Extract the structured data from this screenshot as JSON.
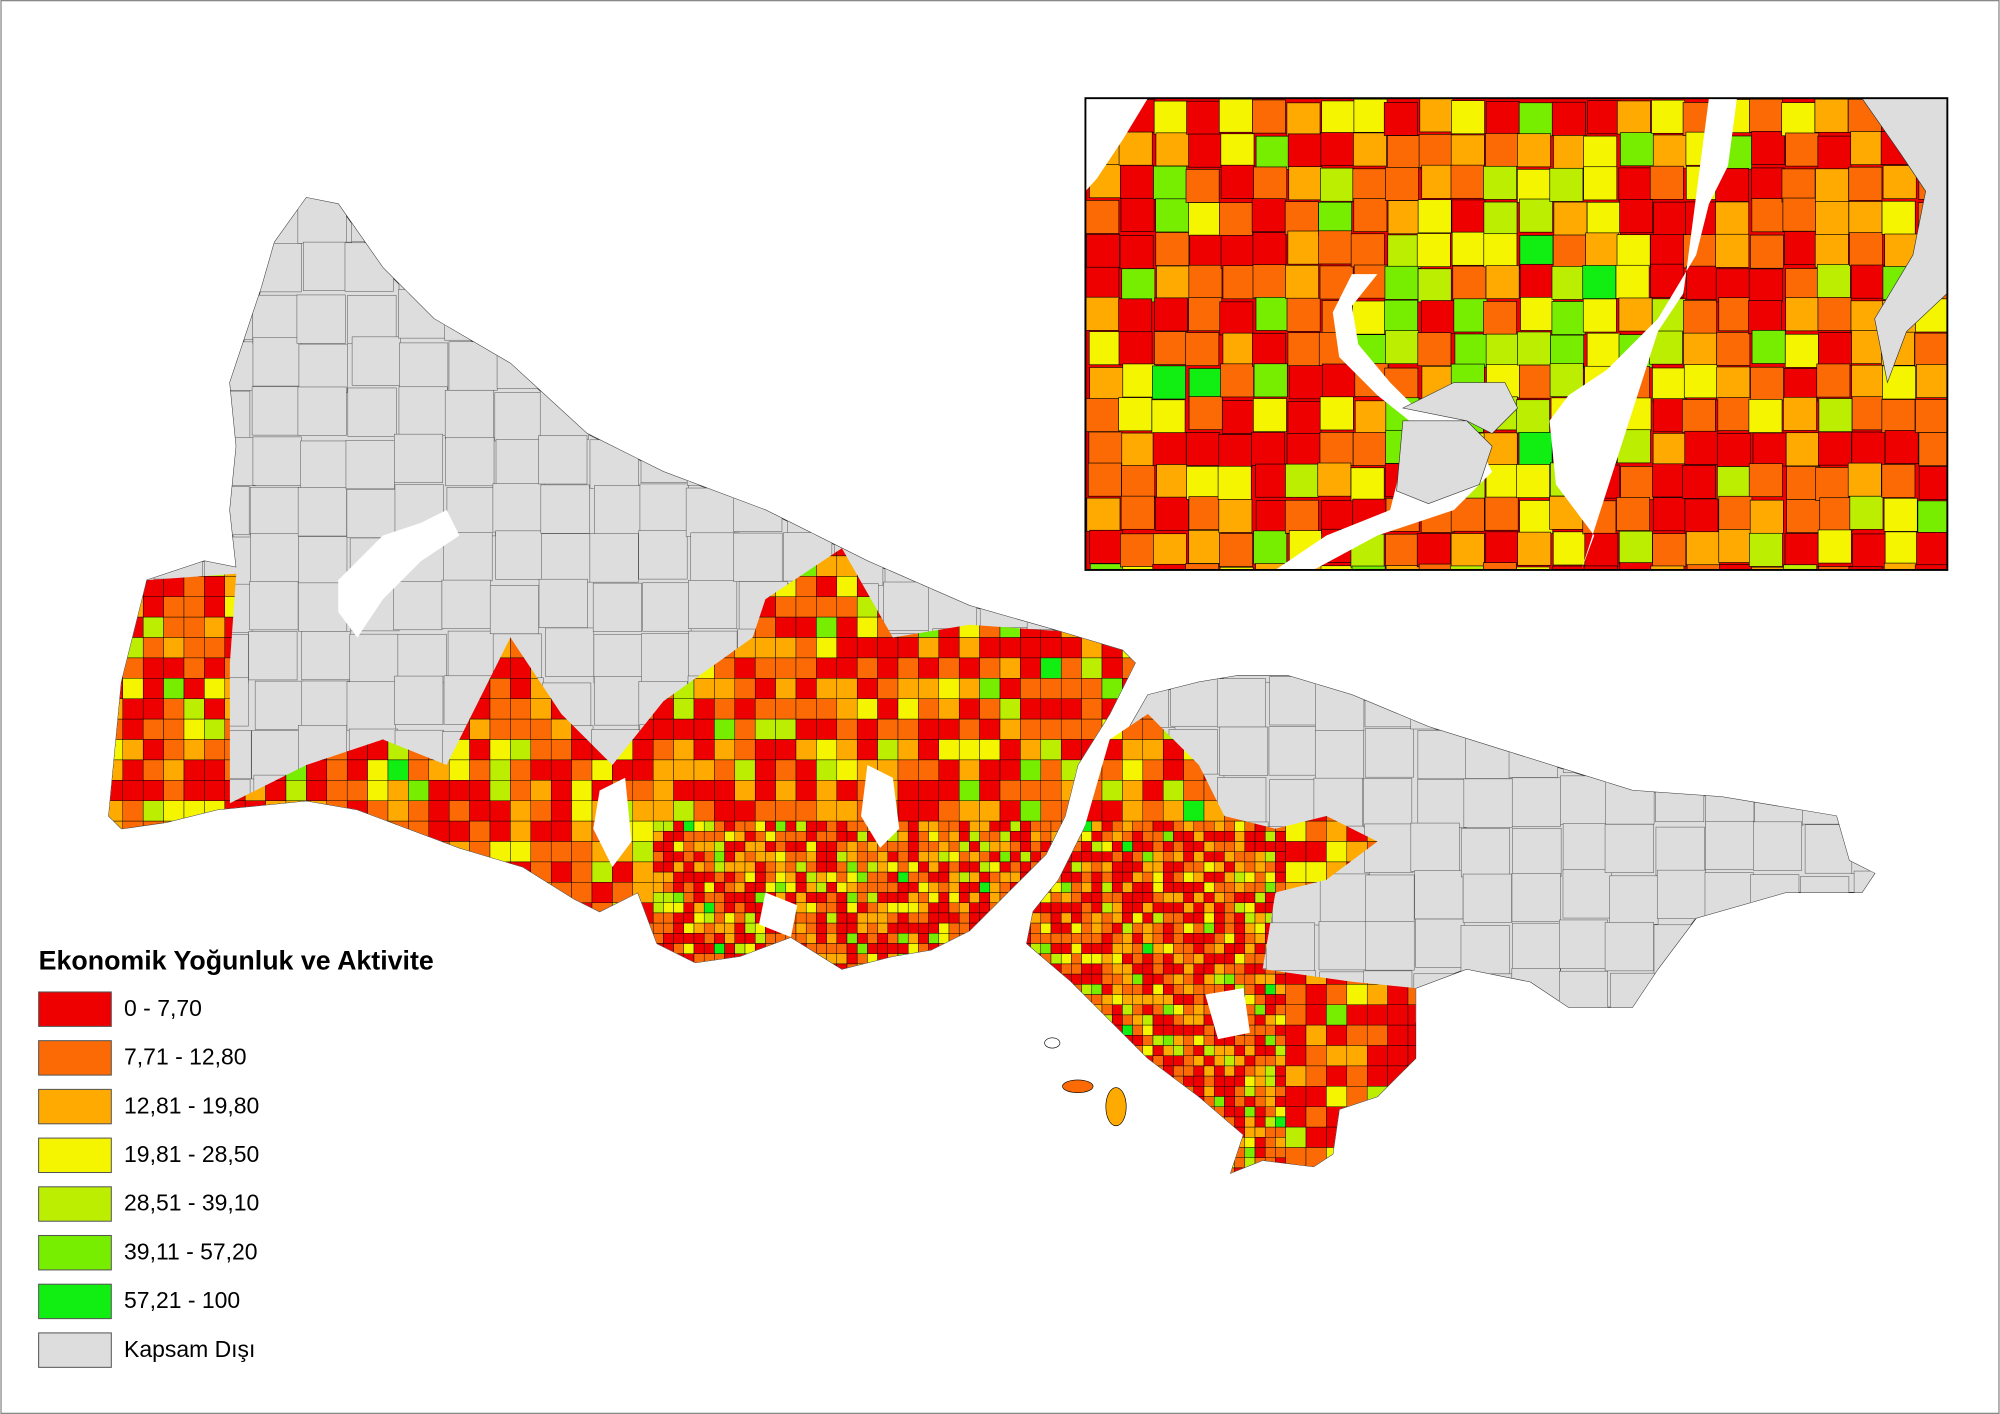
{
  "legend": {
    "title": "Ekonomik Yoğunluk ve Aktivite",
    "items": [
      {
        "label": "0 - 7,70",
        "color": "#ee0000"
      },
      {
        "label": "7,71 - 12,80",
        "color": "#fb6a04"
      },
      {
        "label": "12,81 - 19,80",
        "color": "#ffaa00"
      },
      {
        "label": "19,81 - 28,50",
        "color": "#f5f500"
      },
      {
        "label": "28,51 - 39,10",
        "color": "#bbee00"
      },
      {
        "label": "39,11 - 57,20",
        "color": "#77ee00"
      },
      {
        "label": "57,21 - 100",
        "color": "#11ee11"
      },
      {
        "label": "Kapsam Dışı",
        "color": "#dddddd"
      }
    ]
  }
}
